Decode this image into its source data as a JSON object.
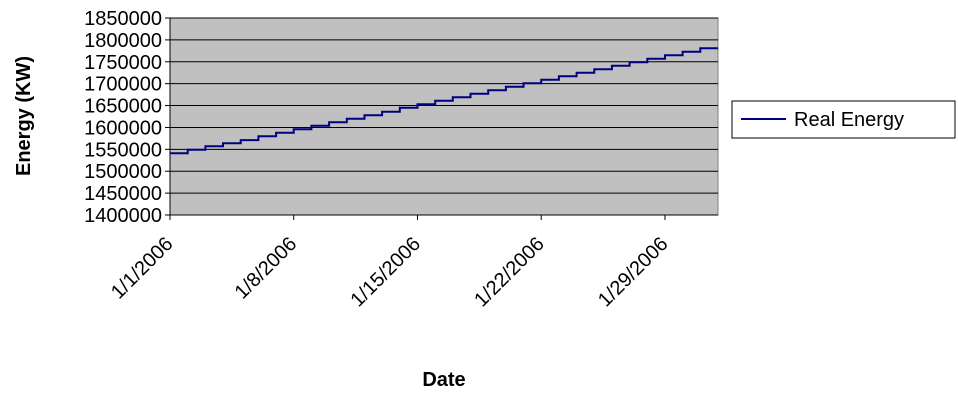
{
  "chart_data": {
    "type": "line",
    "xlabel": "Date",
    "ylabel": "Energy (KW)",
    "ylim": [
      1400000,
      1850000
    ],
    "y_ticks": [
      1400000,
      1450000,
      1500000,
      1550000,
      1600000,
      1650000,
      1700000,
      1750000,
      1800000,
      1850000
    ],
    "y_tick_labels": [
      "1400000",
      "1450000",
      "1500000",
      "1550000",
      "1600000",
      "1650000",
      "1700000",
      "1750000",
      "1800000",
      "1850000"
    ],
    "x_ticks": [
      "1/1/2006",
      "1/8/2006",
      "1/15/2006",
      "1/22/2006",
      "1/29/2006"
    ],
    "x_range": [
      "1/1/2006",
      "2/1/2006"
    ],
    "grid": true,
    "plot_background": "#c0c0c0",
    "legend_position": "right",
    "series": [
      {
        "name": "Real Energy",
        "color": "#000080",
        "style": "step",
        "x": [
          "1/1/2006",
          "1/2/2006",
          "1/3/2006",
          "1/4/2006",
          "1/5/2006",
          "1/6/2006",
          "1/7/2006",
          "1/8/2006",
          "1/9/2006",
          "1/10/2006",
          "1/11/2006",
          "1/12/2006",
          "1/13/2006",
          "1/14/2006",
          "1/15/2006",
          "1/16/2006",
          "1/17/2006",
          "1/18/2006",
          "1/19/2006",
          "1/20/2006",
          "1/21/2006",
          "1/22/2006",
          "1/23/2006",
          "1/24/2006",
          "1/25/2006",
          "1/26/2006",
          "1/27/2006",
          "1/28/2006",
          "1/29/2006",
          "1/30/2006",
          "1/31/2006"
        ],
        "values": [
          1541000,
          1549000,
          1557000,
          1564000,
          1571000,
          1580000,
          1588000,
          1596000,
          1604000,
          1612000,
          1620000,
          1628000,
          1636000,
          1645000,
          1653000,
          1661000,
          1669000,
          1677000,
          1685000,
          1693000,
          1701000,
          1709000,
          1717000,
          1725000,
          1733000,
          1741000,
          1749000,
          1757000,
          1765000,
          1773000,
          1781000
        ]
      }
    ]
  }
}
